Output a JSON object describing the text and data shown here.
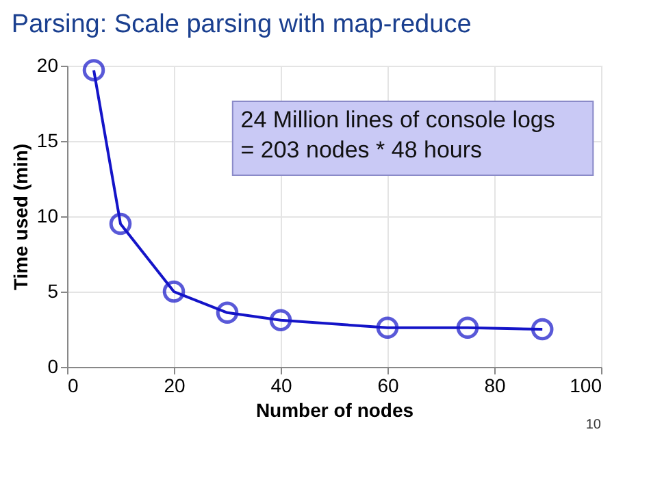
{
  "chart_data": {
    "type": "line",
    "title": "Parsing: Scale parsing with map-reduce",
    "xlabel": "Number of nodes",
    "ylabel": "Time used (min)",
    "x": [
      5,
      10,
      20,
      30,
      40,
      60,
      75,
      89
    ],
    "series": [
      {
        "color": "#1414c8",
        "values": [
          19.7,
          9.5,
          5.0,
          3.6,
          3.1,
          2.6,
          2.6,
          2.5
        ]
      }
    ],
    "xlim": [
      0,
      100
    ],
    "xticks": [
      0,
      20,
      40,
      60,
      80,
      100
    ],
    "ylim": [
      0,
      20
    ],
    "yticks": [
      0,
      5,
      10,
      15,
      20
    ],
    "grid": true,
    "marker": "circle",
    "line_style": "solid",
    "annotations": [
      "24 Million lines of console logs\n= 203 nodes * 48 hours",
      "10"
    ]
  }
}
